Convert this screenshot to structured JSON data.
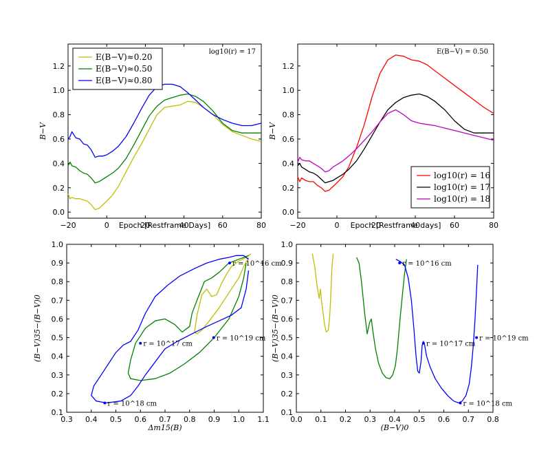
{
  "chart_data": [
    {
      "type": "line",
      "id": "p1",
      "xlabel": "Epoch [Restframe Days]",
      "ylabel": "B−V",
      "xlim": [
        -20,
        80
      ],
      "ylim": [
        -0.05,
        1.38
      ],
      "xticks": [
        -20,
        0,
        20,
        40,
        60,
        80
      ],
      "yticks": [
        0.0,
        0.2,
        0.4,
        0.6,
        0.8,
        1.0,
        1.2
      ],
      "xtick_labels": [
        "−20",
        "0",
        "20",
        "40",
        "60",
        "80"
      ],
      "ytick_labels": [
        "0.0",
        "0.2",
        "0.4",
        "0.6",
        "0.8",
        "1.0",
        "1.2"
      ],
      "annotation": "log10(r) = 17",
      "legend": {
        "position": "upper-left"
      },
      "series": [
        {
          "name": "E(B−V)≈0.20",
          "color": "#bfbf00",
          "x": [
            -20,
            -19,
            -18,
            -16,
            -14,
            -12,
            -10,
            -8,
            -6,
            -4,
            -2,
            0,
            3,
            6,
            10,
            14,
            18,
            22,
            26,
            30,
            34,
            38,
            42,
            46,
            50,
            55,
            60,
            65,
            70,
            75,
            80
          ],
          "y": [
            0.15,
            0.11,
            0.12,
            0.11,
            0.11,
            0.1,
            0.09,
            0.06,
            0.02,
            0.03,
            0.06,
            0.09,
            0.14,
            0.21,
            0.33,
            0.45,
            0.56,
            0.68,
            0.8,
            0.86,
            0.87,
            0.88,
            0.91,
            0.9,
            0.86,
            0.8,
            0.72,
            0.66,
            0.63,
            0.6,
            0.58
          ]
        },
        {
          "name": "E(B−V)≈0.50",
          "color": "#008000",
          "x": [
            -20,
            -19,
            -18,
            -16,
            -14,
            -12,
            -10,
            -8,
            -6,
            -4,
            -2,
            0,
            3,
            6,
            10,
            14,
            18,
            22,
            26,
            30,
            34,
            38,
            42,
            46,
            50,
            55,
            60,
            65,
            70,
            75,
            80
          ],
          "y": [
            0.38,
            0.41,
            0.38,
            0.37,
            0.34,
            0.32,
            0.31,
            0.28,
            0.24,
            0.25,
            0.27,
            0.29,
            0.32,
            0.36,
            0.44,
            0.55,
            0.67,
            0.79,
            0.87,
            0.92,
            0.94,
            0.96,
            0.97,
            0.95,
            0.91,
            0.83,
            0.73,
            0.67,
            0.65,
            0.65,
            0.65
          ]
        },
        {
          "name": "E(B−V)≈0.80",
          "color": "#0000ff",
          "x": [
            -20,
            -19,
            -18,
            -16,
            -14,
            -12,
            -10,
            -8,
            -6,
            -4,
            -2,
            0,
            3,
            6,
            10,
            14,
            18,
            22,
            26,
            30,
            34,
            38,
            42,
            46,
            50,
            55,
            60,
            65,
            70,
            75,
            80
          ],
          "y": [
            0.6,
            0.62,
            0.66,
            0.61,
            0.6,
            0.56,
            0.55,
            0.51,
            0.45,
            0.46,
            0.46,
            0.47,
            0.5,
            0.54,
            0.62,
            0.73,
            0.85,
            0.96,
            1.03,
            1.05,
            1.05,
            1.03,
            0.98,
            0.92,
            0.86,
            0.8,
            0.76,
            0.73,
            0.71,
            0.71,
            0.73
          ]
        }
      ]
    },
    {
      "type": "line",
      "id": "p2",
      "xlabel": "Epoch [Restframe days]",
      "ylabel": "B−V",
      "xlim": [
        -20,
        80
      ],
      "ylim": [
        -0.05,
        1.38
      ],
      "xticks": [
        -20,
        0,
        20,
        40,
        60,
        80
      ],
      "yticks": [
        0.0,
        0.2,
        0.4,
        0.6,
        0.8,
        1.0,
        1.2
      ],
      "xtick_labels": [
        "−20",
        "0",
        "20",
        "40",
        "60",
        "80"
      ],
      "ytick_labels": [
        "0.0",
        "0.2",
        "0.4",
        "0.6",
        "0.8",
        "1.0",
        "1.2"
      ],
      "annotation": "E(B−V) = 0.50",
      "legend": {
        "position": "lower-right"
      },
      "series": [
        {
          "name": "log10(r) = 16",
          "color": "#ff0000",
          "x": [
            -20,
            -19,
            -18,
            -16,
            -14,
            -12,
            -10,
            -8,
            -6,
            -4,
            -2,
            0,
            3,
            6,
            10,
            14,
            18,
            22,
            26,
            30,
            34,
            38,
            42,
            46,
            50,
            55,
            60,
            65,
            70,
            75,
            80
          ],
          "y": [
            0.29,
            0.25,
            0.28,
            0.26,
            0.25,
            0.25,
            0.22,
            0.2,
            0.17,
            0.18,
            0.21,
            0.24,
            0.29,
            0.37,
            0.53,
            0.72,
            0.95,
            1.14,
            1.25,
            1.29,
            1.28,
            1.25,
            1.24,
            1.21,
            1.16,
            1.1,
            1.04,
            0.98,
            0.92,
            0.86,
            0.81
          ]
        },
        {
          "name": "log10(r) = 17",
          "color": "#000000",
          "x": [
            -20,
            -19,
            -18,
            -16,
            -14,
            -12,
            -10,
            -8,
            -6,
            -4,
            -2,
            0,
            3,
            6,
            10,
            14,
            18,
            22,
            26,
            30,
            34,
            38,
            42,
            46,
            50,
            55,
            60,
            65,
            70,
            75,
            80
          ],
          "y": [
            0.38,
            0.4,
            0.37,
            0.35,
            0.33,
            0.32,
            0.3,
            0.27,
            0.24,
            0.25,
            0.26,
            0.28,
            0.31,
            0.35,
            0.42,
            0.52,
            0.63,
            0.74,
            0.84,
            0.9,
            0.94,
            0.96,
            0.97,
            0.95,
            0.91,
            0.84,
            0.75,
            0.68,
            0.65,
            0.65,
            0.65
          ]
        },
        {
          "name": "log10(r) = 18",
          "color": "#bf00bf",
          "x": [
            -20,
            -19,
            -18,
            -16,
            -14,
            -12,
            -10,
            -8,
            -6,
            -4,
            -2,
            0,
            3,
            6,
            10,
            14,
            18,
            22,
            26,
            30,
            34,
            38,
            42,
            46,
            50,
            55,
            60,
            65,
            70,
            75,
            80
          ],
          "y": [
            0.41,
            0.45,
            0.43,
            0.42,
            0.42,
            0.4,
            0.38,
            0.36,
            0.33,
            0.34,
            0.37,
            0.39,
            0.42,
            0.46,
            0.52,
            0.59,
            0.66,
            0.74,
            0.81,
            0.84,
            0.8,
            0.75,
            0.73,
            0.72,
            0.71,
            0.69,
            0.67,
            0.65,
            0.63,
            0.61,
            0.59
          ]
        }
      ]
    },
    {
      "type": "line",
      "id": "p3",
      "xlabel": "Δm15(B)",
      "ylabel": "(B−V)35−(B−V)0",
      "xlim": [
        0.3,
        1.1
      ],
      "ylim": [
        0.1,
        1.0
      ],
      "xticks": [
        0.3,
        0.4,
        0.5,
        0.6,
        0.7,
        0.8,
        0.9,
        1.0,
        1.1
      ],
      "yticks": [
        0.1,
        0.2,
        0.3,
        0.4,
        0.5,
        0.6,
        0.7,
        0.8,
        0.9,
        1.0
      ],
      "xtick_labels": [
        "0.3",
        "0.4",
        "0.5",
        "0.6",
        "0.7",
        "0.8",
        "0.9",
        "1.0",
        "1.1"
      ],
      "ytick_labels": [
        "0.1",
        "0.2",
        "0.3",
        "0.4",
        "0.5",
        "0.6",
        "0.7",
        "0.8",
        "0.9",
        "1.0"
      ],
      "series": [
        {
          "name": "E(B−V)≈0.20",
          "color": "#bfbf00",
          "x": [
            1.05,
            1.03,
            1.0,
            0.97,
            0.95,
            0.93,
            0.91,
            0.89,
            0.87,
            0.85,
            0.83,
            0.82,
            0.83,
            0.85,
            0.88,
            0.92,
            0.96,
            1.0,
            1.02,
            1.04
          ],
          "y": [
            0.95,
            0.93,
            0.91,
            0.88,
            0.84,
            0.79,
            0.73,
            0.72,
            0.76,
            0.73,
            0.62,
            0.53,
            0.52,
            0.54,
            0.59,
            0.66,
            0.74,
            0.82,
            0.88,
            0.93
          ]
        },
        {
          "name": "E(B−V)≈0.50",
          "color": "#008000",
          "x": [
            1.04,
            1.0,
            0.96,
            0.92,
            0.89,
            0.86,
            0.83,
            0.81,
            0.8,
            0.77,
            0.74,
            0.7,
            0.66,
            0.62,
            0.58,
            0.56,
            0.55,
            0.56,
            0.6,
            0.66,
            0.72,
            0.78,
            0.84,
            0.9,
            0.96,
            1.0,
            1.02,
            1.03
          ],
          "y": [
            0.94,
            0.92,
            0.9,
            0.85,
            0.82,
            0.8,
            0.7,
            0.63,
            0.56,
            0.53,
            0.57,
            0.6,
            0.59,
            0.55,
            0.47,
            0.38,
            0.31,
            0.28,
            0.27,
            0.28,
            0.31,
            0.36,
            0.42,
            0.5,
            0.6,
            0.72,
            0.82,
            0.9
          ]
        },
        {
          "name": "E(B−V)≈0.80",
          "color": "#0000ff",
          "x": [
            1.04,
            1.02,
            0.99,
            0.96,
            0.92,
            0.87,
            0.82,
            0.76,
            0.71,
            0.66,
            0.62,
            0.59,
            0.56,
            0.53,
            0.5,
            0.47,
            0.44,
            0.41,
            0.4,
            0.42,
            0.46,
            0.52,
            0.56,
            0.59,
            0.62,
            0.66,
            0.7,
            0.75,
            0.81,
            0.87,
            0.92,
            0.97,
            1.01,
            1.03,
            1.04
          ],
          "y": [
            0.92,
            0.94,
            0.94,
            0.93,
            0.92,
            0.9,
            0.87,
            0.83,
            0.78,
            0.72,
            0.63,
            0.54,
            0.48,
            0.46,
            0.42,
            0.36,
            0.3,
            0.24,
            0.19,
            0.16,
            0.15,
            0.16,
            0.19,
            0.24,
            0.3,
            0.37,
            0.44,
            0.48,
            0.52,
            0.56,
            0.59,
            0.62,
            0.66,
            0.76,
            0.86
          ]
        }
      ],
      "annotations": [
        {
          "label": "r = 10^16 cm",
          "x": 0.963,
          "y": 0.9
        },
        {
          "label": "r = 10^17 cm",
          "x": 0.6,
          "y": 0.47
        },
        {
          "label": "r = 10^18 cm",
          "x": 0.455,
          "y": 0.15
        },
        {
          "label": "r = 10^19 cm",
          "x": 0.898,
          "y": 0.5
        }
      ]
    },
    {
      "type": "line",
      "id": "p4",
      "xlabel": "(B−V)0",
      "ylabel": "(B−V)35−(B−V)0",
      "xlim": [
        0.0,
        0.8
      ],
      "ylim": [
        0.1,
        1.0
      ],
      "xticks": [
        0.0,
        0.1,
        0.2,
        0.3,
        0.4,
        0.5,
        0.6,
        0.7,
        0.8
      ],
      "yticks": [
        0.1,
        0.2,
        0.3,
        0.4,
        0.5,
        0.6,
        0.7,
        0.8,
        0.9,
        1.0
      ],
      "xtick_labels": [
        "0.0",
        "0.1",
        "0.2",
        "0.3",
        "0.4",
        "0.5",
        "0.6",
        "0.7",
        "0.8"
      ],
      "ytick_labels": [
        "0.1",
        "0.2",
        "0.3",
        "0.4",
        "0.5",
        "0.6",
        "0.7",
        "0.8",
        "0.9",
        "1.0"
      ],
      "series": [
        {
          "name": "E(B−V)≈0.20",
          "color": "#bfbf00",
          "x": [
            0.065,
            0.075,
            0.085,
            0.093,
            0.098,
            0.103,
            0.108,
            0.115,
            0.122,
            0.13,
            0.136,
            0.141,
            0.145,
            0.15
          ],
          "y": [
            0.95,
            0.88,
            0.77,
            0.71,
            0.76,
            0.69,
            0.64,
            0.57,
            0.53,
            0.54,
            0.62,
            0.75,
            0.88,
            0.95
          ]
        },
        {
          "name": "E(B−V)≈0.50",
          "color": "#008000",
          "x": [
            0.245,
            0.255,
            0.265,
            0.278,
            0.288,
            0.298,
            0.305,
            0.312,
            0.322,
            0.335,
            0.35,
            0.365,
            0.38,
            0.392,
            0.403,
            0.412,
            0.42,
            0.43,
            0.44,
            0.448
          ],
          "y": [
            0.93,
            0.9,
            0.8,
            0.63,
            0.52,
            0.58,
            0.6,
            0.53,
            0.44,
            0.36,
            0.31,
            0.285,
            0.28,
            0.3,
            0.35,
            0.45,
            0.57,
            0.71,
            0.84,
            0.92
          ]
        },
        {
          "name": "E(B−V)≈0.80",
          "color": "#0000ff",
          "x": [
            0.405,
            0.42,
            0.44,
            0.455,
            0.468,
            0.478,
            0.487,
            0.494,
            0.5,
            0.507,
            0.512,
            0.517,
            0.522,
            0.53,
            0.545,
            0.565,
            0.59,
            0.615,
            0.64,
            0.66,
            0.675,
            0.69,
            0.703,
            0.712,
            0.72,
            0.727,
            0.733,
            0.738
          ],
          "y": [
            0.92,
            0.91,
            0.89,
            0.82,
            0.7,
            0.55,
            0.4,
            0.32,
            0.31,
            0.37,
            0.46,
            0.48,
            0.46,
            0.4,
            0.34,
            0.28,
            0.23,
            0.19,
            0.16,
            0.15,
            0.16,
            0.19,
            0.25,
            0.34,
            0.46,
            0.6,
            0.75,
            0.89
          ]
        }
      ],
      "annotations": [
        {
          "label": "r = 10^16 cm",
          "x": 0.42,
          "y": 0.9
        },
        {
          "label": "r = 10^17 cm",
          "x": 0.517,
          "y": 0.47
        },
        {
          "label": "r = 10^18 cm",
          "x": 0.667,
          "y": 0.15
        },
        {
          "label": "r = 10^19 cm",
          "x": 0.733,
          "y": 0.5
        }
      ]
    }
  ]
}
